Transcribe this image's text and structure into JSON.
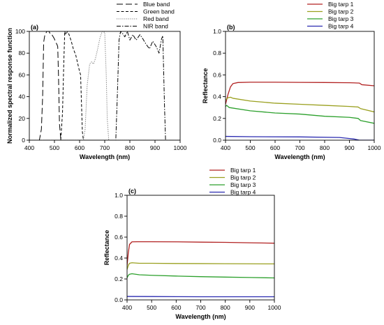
{
  "chart_data": [
    {
      "type": "line",
      "panel_label": "(a)",
      "xlabel": "Wavelength (nm)",
      "ylabel": "Normalized spectral response function",
      "xlim": [
        400,
        1000
      ],
      "ylim": [
        0,
        100
      ],
      "xticks": [
        400,
        500,
        600,
        700,
        800,
        900,
        1000
      ],
      "yticks": [
        0,
        20,
        40,
        60,
        80,
        100
      ],
      "grid": false,
      "legend_position": "top-right, outside plot",
      "series": [
        {
          "name": "Blue band",
          "color": "#000000",
          "dash": "long-dash",
          "x": [
            400,
            440,
            448,
            453,
            457,
            462,
            470,
            478,
            485,
            490,
            495,
            500,
            505,
            510,
            513,
            516,
            520,
            525,
            530,
            1000
          ],
          "y": [
            0,
            0,
            10,
            40,
            90,
            97,
            100,
            100,
            97,
            97,
            95,
            93,
            90,
            88,
            86,
            60,
            15,
            1,
            0,
            0
          ]
        },
        {
          "name": "Green band",
          "color": "#000000",
          "dash": "short-dash",
          "x": [
            400,
            525,
            532,
            537,
            541,
            545,
            552,
            560,
            568,
            575,
            585,
            593,
            598,
            604,
            611,
            615,
            1000
          ],
          "y": [
            0,
            0,
            25,
            70,
            100,
            97,
            100,
            96,
            90,
            84,
            78,
            70,
            65,
            60,
            8,
            0,
            0
          ]
        },
        {
          "name": "Red band",
          "color": "#777777",
          "dash": "dotted",
          "x": [
            400,
            615,
            622,
            630,
            640,
            648,
            655,
            663,
            672,
            681,
            690,
            700,
            706,
            710,
            716,
            1000
          ],
          "y": [
            0,
            0,
            10,
            50,
            70,
            72,
            70,
            75,
            84,
            94,
            100,
            99,
            60,
            20,
            0,
            0
          ]
        },
        {
          "name": "NIR band",
          "color": "#000000",
          "dash": "dash-dot",
          "x": [
            400,
            744,
            750,
            757,
            763,
            771,
            780,
            790,
            800,
            812,
            825,
            840,
            852,
            865,
            878,
            891,
            905,
            916,
            926,
            931,
            938,
            942,
            1000
          ],
          "y": [
            0,
            0,
            40,
            92,
            100,
            98,
            95,
            100,
            92,
            97,
            92,
            97,
            93,
            88,
            84,
            91,
            86,
            80,
            93,
            96,
            30,
            0,
            0
          ]
        }
      ]
    },
    {
      "type": "line",
      "panel_label": "(b)",
      "xlabel": "Wavelength (nm)",
      "ylabel": "Reflectance",
      "xlim": [
        400,
        1000
      ],
      "ylim": [
        0,
        1.0
      ],
      "xticks": [
        400,
        500,
        600,
        700,
        800,
        900,
        1000
      ],
      "yticks": [
        0.0,
        0.2,
        0.4,
        0.6,
        0.8,
        1.0
      ],
      "grid": false,
      "legend_position": "top-right, outside plot",
      "series": [
        {
          "name": "Big tarp 1",
          "color": "#b22222",
          "x": [
            400,
            410,
            420,
            430,
            450,
            500,
            600,
            700,
            800,
            900,
            940,
            950,
            1000
          ],
          "y": [
            0.33,
            0.42,
            0.49,
            0.52,
            0.53,
            0.533,
            0.533,
            0.531,
            0.53,
            0.528,
            0.525,
            0.51,
            0.5
          ]
        },
        {
          "name": "Big tarp 2",
          "color": "#9aa01f",
          "x": [
            400,
            410,
            420,
            430,
            500,
            600,
            700,
            800,
            900,
            935,
            945,
            1000
          ],
          "y": [
            0.37,
            0.39,
            0.395,
            0.385,
            0.36,
            0.34,
            0.33,
            0.32,
            0.31,
            0.305,
            0.29,
            0.26
          ]
        },
        {
          "name": "Big tarp 3",
          "color": "#2ca02c",
          "x": [
            400,
            405,
            415,
            500,
            600,
            700,
            800,
            900,
            935,
            945,
            1000
          ],
          "y": [
            0.31,
            0.32,
            0.3,
            0.27,
            0.25,
            0.24,
            0.22,
            0.21,
            0.2,
            0.18,
            0.155
          ]
        },
        {
          "name": "Big tarp 4",
          "color": "#2a2ab0",
          "x": [
            400,
            500,
            700,
            860,
            900,
            920,
            940,
            1000
          ],
          "y": [
            0.035,
            0.032,
            0.03,
            0.025,
            0.015,
            0.01,
            0.0,
            0.0
          ]
        }
      ]
    },
    {
      "type": "line",
      "panel_label": "(c)",
      "xlabel": "Wavelength (nm)",
      "ylabel": "Reflectance",
      "xlim": [
        400,
        1000
      ],
      "ylim": [
        0,
        1.0
      ],
      "xticks": [
        400,
        500,
        600,
        700,
        800,
        900,
        1000
      ],
      "yticks": [
        0.0,
        0.2,
        0.4,
        0.6,
        0.8,
        1.0
      ],
      "grid": false,
      "legend_position": "top-right, outside plot",
      "series": [
        {
          "name": "Big tarp 1",
          "color": "#b22222",
          "x": [
            400,
            405,
            410,
            420,
            440,
            500,
            600,
            700,
            800,
            900,
            1000
          ],
          "y": [
            0.33,
            0.45,
            0.53,
            0.555,
            0.556,
            0.556,
            0.555,
            0.552,
            0.55,
            0.546,
            0.542
          ]
        },
        {
          "name": "Big tarp 2",
          "color": "#9aa01f",
          "x": [
            400,
            405,
            410,
            420,
            450,
            500,
            600,
            700,
            800,
            900,
            1000
          ],
          "y": [
            0.29,
            0.33,
            0.35,
            0.355,
            0.35,
            0.35,
            0.348,
            0.347,
            0.346,
            0.345,
            0.344
          ]
        },
        {
          "name": "Big tarp 3",
          "color": "#2ca02c",
          "x": [
            400,
            405,
            410,
            420,
            450,
            500,
            600,
            700,
            800,
            900,
            1000
          ],
          "y": [
            0.21,
            0.235,
            0.245,
            0.25,
            0.24,
            0.235,
            0.228,
            0.222,
            0.218,
            0.214,
            0.21
          ]
        },
        {
          "name": "Big tarp 4",
          "color": "#2a2ab0",
          "x": [
            400,
            500,
            600,
            700,
            800,
            900,
            1000
          ],
          "y": [
            0.033,
            0.032,
            0.031,
            0.03,
            0.03,
            0.03,
            0.03
          ]
        }
      ]
    }
  ]
}
